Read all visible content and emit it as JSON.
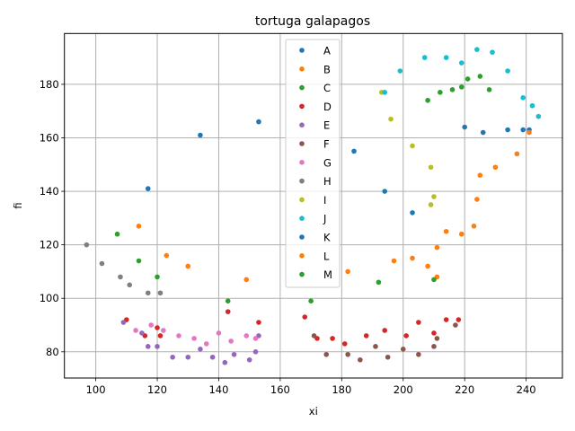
{
  "chart_data": {
    "type": "scatter",
    "title": "tortuga galapagos",
    "xlabel": "xi",
    "ylabel": "fi",
    "xlim": [
      89.8,
      251.8
    ],
    "ylim": [
      70.2,
      199.0
    ],
    "xticks": [
      100,
      120,
      140,
      160,
      180,
      200,
      220,
      240
    ],
    "yticks": [
      80,
      100,
      120,
      140,
      160,
      180
    ],
    "grid": true,
    "legend_position": "upper center",
    "series": [
      {
        "name": "A",
        "color": "#1f77b4",
        "points": [
          [
            117,
            141
          ],
          [
            134,
            161
          ],
          [
            153,
            166
          ],
          [
            184,
            155
          ],
          [
            194,
            140
          ],
          [
            203,
            132
          ],
          [
            220,
            164
          ],
          [
            226,
            162
          ],
          [
            234,
            163
          ],
          [
            239,
            163
          ],
          [
            241,
            163
          ]
        ]
      },
      {
        "name": "B",
        "color": "#ff7f0e",
        "points": [
          [
            114,
            127
          ],
          [
            123,
            116
          ],
          [
            130,
            112
          ],
          [
            149,
            107
          ],
          [
            182,
            110
          ],
          [
            197,
            114
          ],
          [
            203,
            115
          ],
          [
            208,
            112
          ],
          [
            211,
            108
          ],
          [
            211,
            119
          ],
          [
            214,
            125
          ],
          [
            219,
            124
          ],
          [
            223,
            127
          ],
          [
            224,
            137
          ],
          [
            225,
            146
          ],
          [
            230,
            149
          ],
          [
            237,
            154
          ],
          [
            241,
            162
          ]
        ]
      },
      {
        "name": "C",
        "color": "#2ca02c",
        "points": [
          [
            107,
            124
          ],
          [
            114,
            114
          ],
          [
            120,
            108
          ],
          [
            143,
            99
          ],
          [
            170,
            99
          ],
          [
            192,
            106
          ],
          [
            210,
            107
          ],
          [
            208,
            174
          ],
          [
            212,
            177
          ],
          [
            216,
            178
          ],
          [
            219,
            179
          ],
          [
            221,
            182
          ],
          [
            225,
            183
          ],
          [
            228,
            178
          ]
        ]
      },
      {
        "name": "D",
        "color": "#d62728",
        "points": [
          [
            110,
            92
          ],
          [
            116,
            86
          ],
          [
            120,
            89
          ],
          [
            121,
            86
          ],
          [
            143,
            95
          ],
          [
            153,
            91
          ],
          [
            168,
            93
          ],
          [
            172,
            85
          ],
          [
            177,
            85
          ],
          [
            181,
            83
          ],
          [
            188,
            86
          ],
          [
            194,
            88
          ],
          [
            201,
            86
          ],
          [
            205,
            91
          ],
          [
            210,
            87
          ],
          [
            214,
            92
          ],
          [
            218,
            92
          ]
        ]
      },
      {
        "name": "E",
        "color": "#9467bd",
        "points": [
          [
            109,
            91
          ],
          [
            115,
            87
          ],
          [
            117,
            82
          ],
          [
            120,
            82
          ],
          [
            125,
            78
          ],
          [
            130,
            78
          ],
          [
            134,
            81
          ],
          [
            138,
            78
          ],
          [
            142,
            76
          ],
          [
            145,
            79
          ],
          [
            150,
            77
          ],
          [
            152,
            80
          ],
          [
            153,
            86
          ]
        ]
      },
      {
        "name": "F",
        "color": "#8c564b",
        "points": [
          [
            171,
            86
          ],
          [
            175,
            79
          ],
          [
            182,
            79
          ],
          [
            186,
            77
          ],
          [
            191,
            82
          ],
          [
            195,
            78
          ],
          [
            200,
            81
          ],
          [
            205,
            79
          ],
          [
            210,
            82
          ],
          [
            211,
            85
          ],
          [
            217,
            90
          ]
        ]
      },
      {
        "name": "G",
        "color": "#e377c2",
        "points": [
          [
            113,
            88
          ],
          [
            118,
            90
          ],
          [
            122,
            88
          ],
          [
            127,
            86
          ],
          [
            132,
            85
          ],
          [
            136,
            83
          ],
          [
            140,
            87
          ],
          [
            144,
            84
          ],
          [
            149,
            86
          ],
          [
            152,
            85
          ]
        ]
      },
      {
        "name": "H",
        "color": "#7f7f7f",
        "points": [
          [
            97,
            120
          ],
          [
            102,
            113
          ],
          [
            108,
            108
          ],
          [
            111,
            105
          ],
          [
            117,
            102
          ],
          [
            121,
            102
          ]
        ]
      },
      {
        "name": "I",
        "color": "#bcbd22",
        "points": [
          [
            193,
            177
          ],
          [
            196,
            167
          ],
          [
            203,
            157
          ],
          [
            209,
            149
          ],
          [
            210,
            138
          ],
          [
            209,
            135
          ]
        ]
      },
      {
        "name": "J",
        "color": "#17becf",
        "points": [
          [
            194,
            177
          ],
          [
            199,
            185
          ],
          [
            207,
            190
          ],
          [
            214,
            190
          ],
          [
            219,
            188
          ],
          [
            224,
            193
          ],
          [
            229,
            192
          ],
          [
            234,
            185
          ],
          [
            239,
            175
          ],
          [
            242,
            172
          ],
          [
            244,
            168
          ]
        ]
      },
      {
        "name": "K",
        "color": "#1f77b4",
        "points": []
      },
      {
        "name": "L",
        "color": "#ff7f0e",
        "points": []
      },
      {
        "name": "M",
        "color": "#2ca02c",
        "points": []
      }
    ]
  }
}
